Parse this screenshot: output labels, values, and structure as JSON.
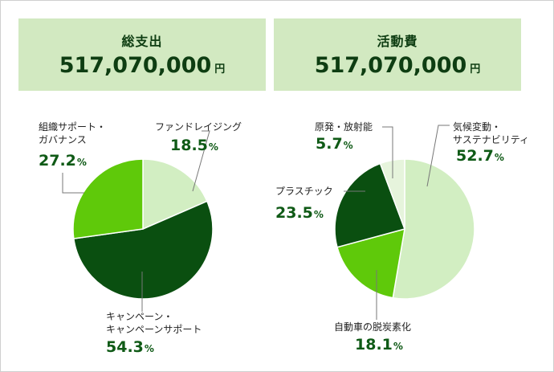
{
  "chart_data": [
    {
      "type": "pie",
      "title": "総支出",
      "total": "517,070,000",
      "unit": "円",
      "slices": [
        {
          "label_lines": [
            "ファンドレイジング"
          ],
          "value": 18.5,
          "value_text": "18.5",
          "color": "#d2eec2"
        },
        {
          "label_lines": [
            "キャンペーン・",
            "キャンペーンサポート"
          ],
          "value": 54.3,
          "value_text": "54.3",
          "color": "#0a4f10"
        },
        {
          "label_lines": [
            "組織サポート・",
            "ガバナンス"
          ],
          "value": 27.2,
          "value_text": "27.2",
          "color": "#5fc90a"
        }
      ]
    },
    {
      "type": "pie",
      "title": "活動費",
      "total": "517,070,000",
      "unit": "円",
      "slices": [
        {
          "label_lines": [
            "気候変動・",
            "サステナビリティ"
          ],
          "value": 52.7,
          "value_text": "52.7",
          "color": "#d2eec2"
        },
        {
          "label_lines": [
            "自動車の脱炭素化"
          ],
          "value": 18.1,
          "value_text": "18.1",
          "color": "#5fc90a"
        },
        {
          "label_lines": [
            "プラスチック"
          ],
          "value": 23.5,
          "value_text": "23.5",
          "color": "#0a4f10"
        },
        {
          "label_lines": [
            "原発・放射能"
          ],
          "value": 5.7,
          "value_text": "5.7",
          "color": "#e6f4dc"
        }
      ]
    }
  ],
  "percent_sign": "%"
}
